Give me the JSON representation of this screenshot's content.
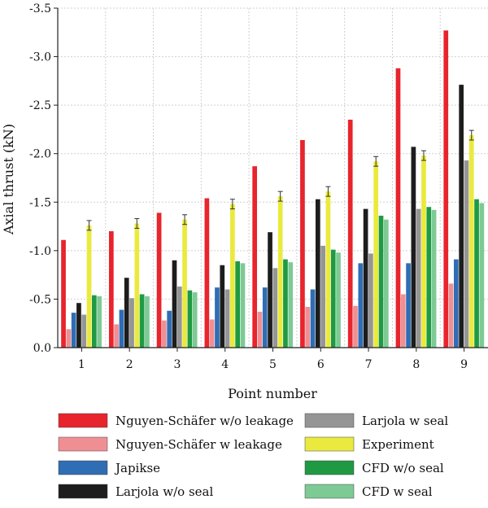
{
  "chart_data": {
    "type": "bar",
    "xlabel": "Point number",
    "ylabel": "Axial thrust (kN)",
    "ylim": [
      0,
      -3.5
    ],
    "yticks": [
      "0.0",
      "-0.5",
      "-1.0",
      "-1.5",
      "-2.0",
      "-2.5",
      "-3.0",
      "-3.5"
    ],
    "ytick_values": [
      0,
      -0.5,
      -1.0,
      -1.5,
      -2.0,
      -2.5,
      -3.0,
      -3.5
    ],
    "categories": [
      "1",
      "2",
      "3",
      "4",
      "5",
      "6",
      "7",
      "8",
      "9"
    ],
    "grid": true,
    "legend_position": "bottom",
    "series": [
      {
        "name": "Nguyen-Schäfer w/o leakage",
        "color": "#e8242c",
        "values": [
          -1.11,
          -1.2,
          -1.39,
          -1.54,
          -1.87,
          -2.14,
          -2.35,
          -2.88,
          -3.27
        ]
      },
      {
        "name": "Nguyen-Schäfer w leakage",
        "color": "#f08f93",
        "values": [
          -0.19,
          -0.24,
          -0.28,
          -0.29,
          -0.37,
          -0.42,
          -0.43,
          -0.55,
          -0.66
        ]
      },
      {
        "name": "Japikse",
        "color": "#2f6db4",
        "values": [
          -0.36,
          -0.39,
          -0.38,
          -0.62,
          -0.62,
          -0.6,
          -0.87,
          -0.87,
          -0.91
        ]
      },
      {
        "name": "Larjola w/o seal",
        "color": "#1d1d1d",
        "values": [
          -0.46,
          -0.72,
          -0.9,
          -0.85,
          -1.19,
          -1.53,
          -1.43,
          -2.07,
          -2.71
        ]
      },
      {
        "name": "Larjola w seal",
        "color": "#959595",
        "values": [
          -0.34,
          -0.51,
          -0.63,
          -0.6,
          -0.82,
          -1.05,
          -0.97,
          -1.43,
          -1.93
        ]
      },
      {
        "name": "Experiment",
        "color": "#eaea3e",
        "values": [
          -1.26,
          -1.28,
          -1.32,
          -1.48,
          -1.56,
          -1.61,
          -1.92,
          -1.98,
          -2.19
        ],
        "errors": [
          0.05,
          0.05,
          0.05,
          0.05,
          0.05,
          0.05,
          0.05,
          0.05,
          0.05
        ]
      },
      {
        "name": "CFD w/o seal",
        "color": "#1f9a42",
        "values": [
          -0.54,
          -0.55,
          -0.59,
          -0.89,
          -0.91,
          -1.01,
          -1.36,
          -1.45,
          -1.53
        ]
      },
      {
        "name": "CFD w seal",
        "color": "#7dca94",
        "values": [
          -0.53,
          -0.53,
          -0.57,
          -0.87,
          -0.88,
          -0.98,
          -1.32,
          -1.42,
          -1.49
        ]
      }
    ]
  }
}
